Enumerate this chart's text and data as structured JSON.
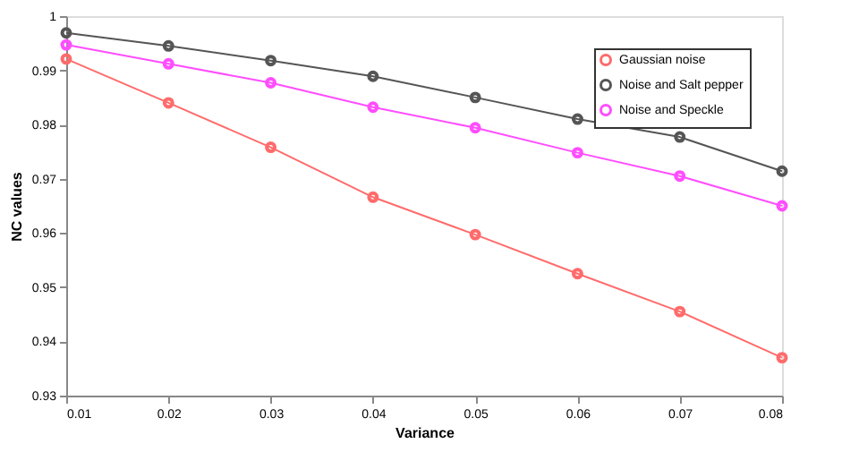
{
  "chart_data": {
    "type": "line",
    "xlabel": "Variance",
    "ylabel": "NC values",
    "x": [
      0.01,
      0.02,
      0.03,
      0.04,
      0.05,
      0.06,
      0.07,
      0.08
    ],
    "series": [
      {
        "name": "Gaussian noise",
        "color": "#ff6b6b",
        "values": [
          0.9921,
          0.984,
          0.9758,
          0.9666,
          0.9597,
          0.9525,
          0.9455,
          0.937
        ]
      },
      {
        "name": "Noise and Salt pepper",
        "color": "#555555",
        "values": [
          0.9969,
          0.9945,
          0.9918,
          0.9889,
          0.985,
          0.981,
          0.9777,
          0.9714
        ]
      },
      {
        "name": "Noise and Speckle",
        "color": "#ff4dff",
        "values": [
          0.9947,
          0.9912,
          0.9877,
          0.9832,
          0.9794,
          0.9748,
          0.9705,
          0.965
        ]
      }
    ],
    "xlim": [
      0.01,
      0.08
    ],
    "xticks": [
      0.01,
      0.02,
      0.03,
      0.04,
      0.05,
      0.06,
      0.07,
      0.08
    ],
    "ylim": [
      0.93,
      1
    ],
    "yticks": [
      0.93,
      0.94,
      0.95,
      0.96,
      0.97,
      0.98,
      0.99,
      1
    ],
    "grid": false,
    "legend": "top right",
    "marker": "circle",
    "line_style": "solid"
  }
}
